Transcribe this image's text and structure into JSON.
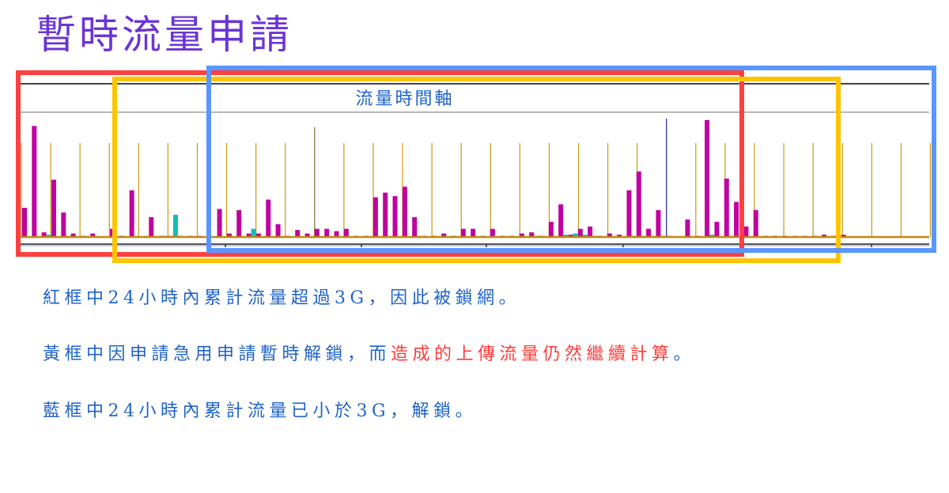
{
  "title": "暫時流量申請",
  "chart_data": {
    "type": "bar",
    "title": "流量時間軸",
    "xlabel": "",
    "ylabel": "",
    "ylim": [
      0,
      100
    ],
    "grid": false,
    "series": [
      {
        "color": "#c000a0",
        "values": [
          25,
          95,
          4,
          49,
          21,
          3,
          1,
          3,
          0,
          7,
          1,
          40,
          0,
          17,
          1,
          1,
          1,
          1,
          1,
          0,
          24,
          3,
          23,
          3,
          3,
          32,
          11,
          1,
          6,
          3,
          7,
          7,
          5,
          7,
          1,
          1,
          34,
          38,
          35,
          43,
          17,
          1,
          1,
          3,
          1,
          7,
          7,
          1,
          7,
          1,
          1,
          3,
          4,
          1,
          13,
          28,
          2,
          7,
          9,
          1,
          3,
          2,
          40,
          56,
          7,
          23,
          1,
          0,
          15,
          1,
          100,
          13,
          50,
          30,
          9,
          23,
          1,
          1,
          1,
          1,
          1,
          1,
          2,
          1,
          2,
          0,
          0,
          0,
          0,
          0,
          0,
          0,
          0
        ]
      },
      {
        "color": "#10c0b8",
        "values": [
          0,
          0,
          2,
          0,
          1,
          0,
          0,
          0,
          0,
          0,
          0,
          0,
          1,
          0,
          1,
          19,
          0,
          0,
          0,
          0,
          0,
          0,
          0,
          7,
          0,
          0,
          0,
          0,
          0,
          0,
          0,
          0,
          0,
          0,
          0,
          0,
          0,
          0,
          0,
          0,
          1,
          0,
          0,
          0,
          0,
          0,
          0,
          0,
          0,
          0,
          0,
          0,
          1,
          0,
          0,
          2,
          3,
          2,
          1,
          0,
          0,
          0,
          1,
          1,
          1,
          1,
          0,
          0,
          0,
          0,
          2,
          0,
          1,
          0,
          0,
          0,
          0,
          0,
          0,
          0,
          0,
          0,
          0,
          0,
          0,
          0,
          0,
          0,
          0,
          0,
          0,
          0,
          0
        ]
      }
    ],
    "highlight_boxes": [
      {
        "label": "紅框",
        "color": "#ff4040"
      },
      {
        "label": "黃框",
        "color": "#ffc400"
      },
      {
        "label": "藍框",
        "color": "#5a96ff"
      }
    ]
  },
  "notes": {
    "red_box": "紅框中24小時內累計流量超過3G，因此被鎖網。",
    "yellow_box_a": "黃框中因申請急用申請暫時解鎖，而",
    "yellow_box_b": "造成的上傳流量仍然繼續計算",
    "yellow_box_c": "。",
    "blue_box": "藍框中24小時內累計流量已小於3G，解鎖。"
  }
}
